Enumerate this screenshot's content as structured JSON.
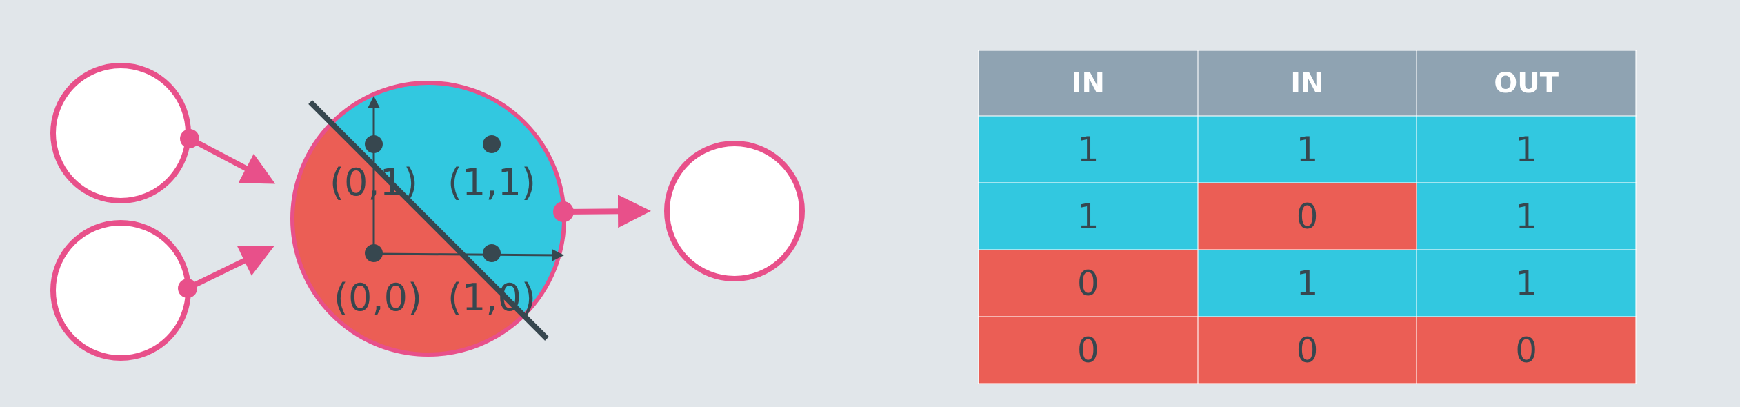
{
  "colors": {
    "background": "#e1e6ea",
    "node_stroke": "#e8508a",
    "positive": "#32c8e0",
    "negative": "#eb5e55",
    "ink": "#37474f",
    "header": "#8fa3b2"
  },
  "diagram": {
    "points": [
      {
        "label": "(0,1)"
      },
      {
        "label": "(1,1)"
      },
      {
        "label": "(0,0)"
      },
      {
        "label": "(1,0)"
      }
    ]
  },
  "table": {
    "headers": [
      "IN",
      "IN",
      "OUT"
    ],
    "rows": [
      [
        "1",
        "1",
        "1"
      ],
      [
        "1",
        "0",
        "1"
      ],
      [
        "0",
        "1",
        "1"
      ],
      [
        "0",
        "0",
        "0"
      ]
    ]
  }
}
